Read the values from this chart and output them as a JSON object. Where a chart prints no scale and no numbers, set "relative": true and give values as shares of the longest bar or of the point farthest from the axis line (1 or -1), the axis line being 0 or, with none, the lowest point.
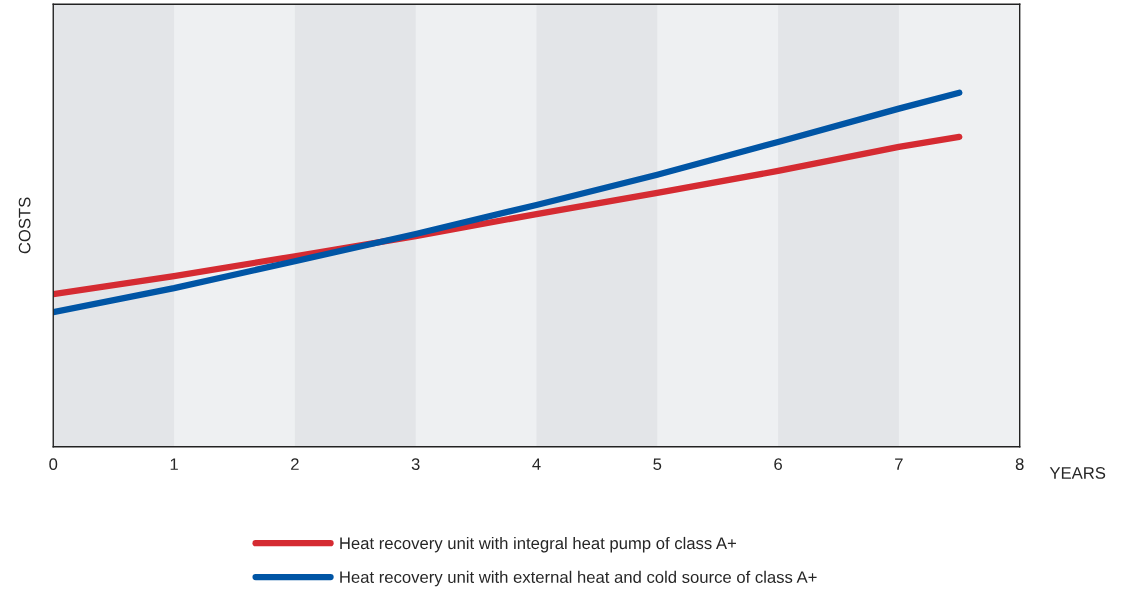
{
  "chart_data": {
    "type": "line",
    "relative": true,
    "xlabel": "YEARS",
    "ylabel": "COSTS",
    "xlim": [
      0,
      8
    ],
    "xticks": [
      0,
      1,
      2,
      3,
      4,
      5,
      6,
      7,
      8
    ],
    "x": [
      0,
      1,
      2,
      3,
      4,
      5,
      6,
      7,
      7.5
    ],
    "series": [
      {
        "name": "Heat recovery unit with integral heat pump of class A+",
        "color": "#d52b32",
        "values": [
          0.431,
          0.482,
          0.538,
          0.595,
          0.657,
          0.717,
          0.779,
          0.847,
          0.875
        ]
      },
      {
        "name": "Heat recovery unit with external heat and cold source of class A+",
        "color": "#0055a5",
        "values": [
          0.38,
          0.448,
          0.524,
          0.601,
          0.683,
          0.768,
          0.861,
          0.955,
          1.0
        ]
      }
    ],
    "bands": [
      {
        "axis": "x",
        "from": 0,
        "to": 1,
        "color": "#e3e5e8"
      },
      {
        "axis": "x",
        "from": 2,
        "to": 3,
        "color": "#e3e5e8"
      },
      {
        "axis": "x",
        "from": 4,
        "to": 5,
        "color": "#e3e5e8"
      },
      {
        "axis": "x",
        "from": 6,
        "to": 7,
        "color": "#e3e5e8"
      }
    ],
    "grid": false,
    "legend": "bottom",
    "line_style": "solid",
    "marker": "none"
  }
}
